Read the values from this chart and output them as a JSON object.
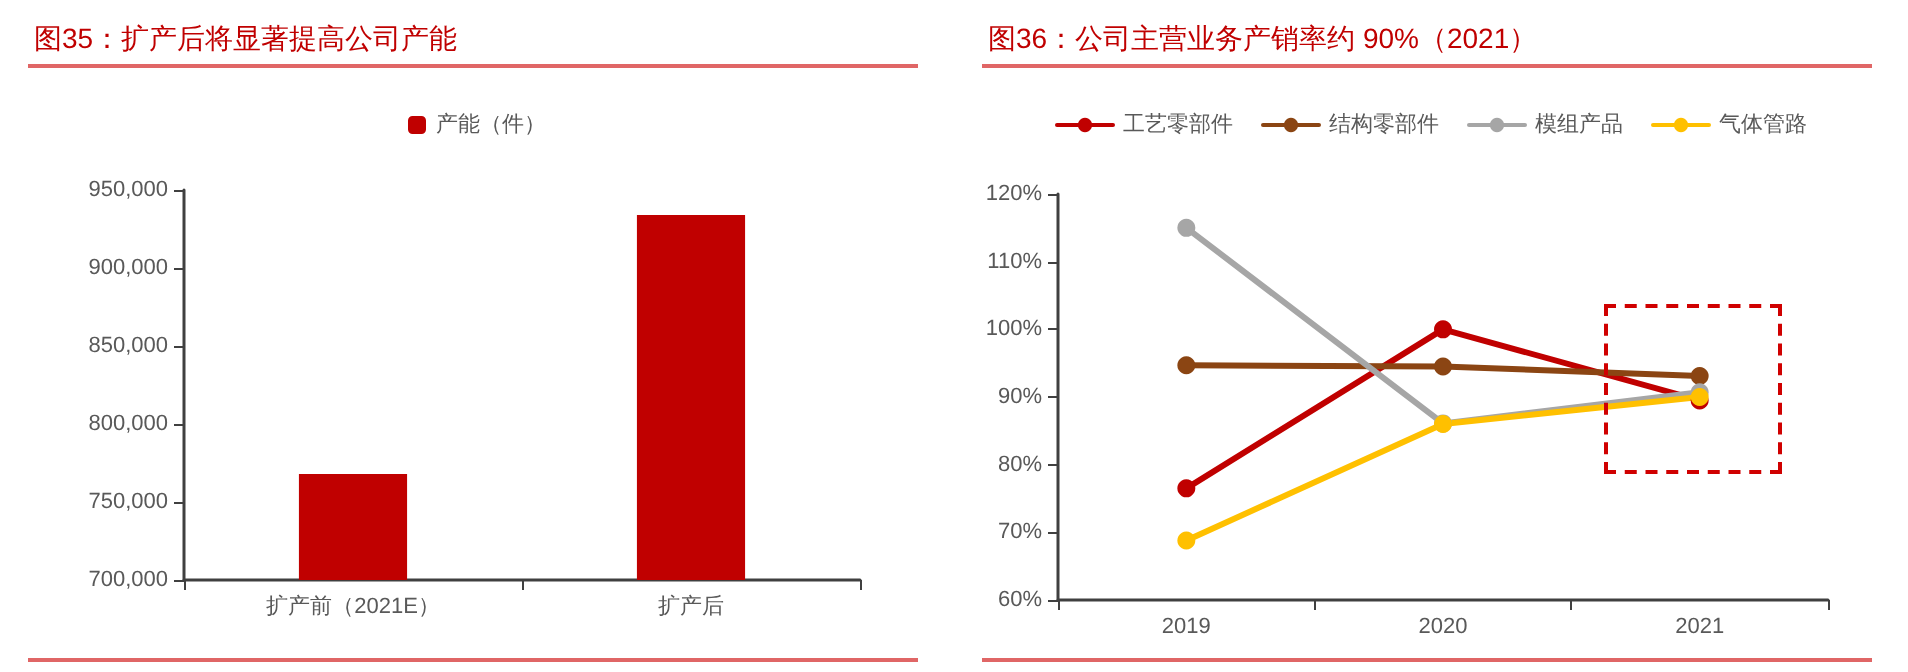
{
  "chart_data": [
    {
      "type": "bar",
      "title": "图35：扩产后将显著提高公司产能",
      "categories": [
        "扩产前（2021E）",
        "扩产后"
      ],
      "series": [
        {
          "name": "产能（件）",
          "color": "#c00000",
          "values": [
            768000,
            934000
          ]
        }
      ],
      "ylim": [
        700000,
        950000
      ],
      "yticks": [
        {
          "value": 700000,
          "label": "700,000"
        },
        {
          "value": 750000,
          "label": "750,000"
        },
        {
          "value": 800000,
          "label": "800,000"
        },
        {
          "value": 850000,
          "label": "850,000"
        },
        {
          "value": 900000,
          "label": "900,000"
        },
        {
          "value": 950000,
          "label": "950,000"
        }
      ],
      "legend": "top",
      "grid": false
    },
    {
      "type": "line",
      "title": "图36：公司主营业务产销率约 90%（2021）",
      "categories": [
        "2019",
        "2020",
        "2021"
      ],
      "series": [
        {
          "name": "工艺零部件",
          "color": "#c00000",
          "values": [
            76.5,
            100,
            89.5
          ]
        },
        {
          "name": "结构零部件",
          "color": "#8b4513",
          "values": [
            94.7,
            94.5,
            93.1
          ]
        },
        {
          "name": "模组产品",
          "color": "#a6a6a6",
          "values": [
            115,
            86.1,
            90.7
          ]
        },
        {
          "name": "气体管路",
          "color": "#ffc000",
          "values": [
            68.8,
            86,
            90
          ]
        }
      ],
      "ylim": [
        60,
        120
      ],
      "yticks": [
        {
          "value": 60,
          "label": "60%"
        },
        {
          "value": 70,
          "label": "70%"
        },
        {
          "value": 80,
          "label": "80%"
        },
        {
          "value": 90,
          "label": "90%"
        },
        {
          "value": 100,
          "label": "100%"
        },
        {
          "value": 110,
          "label": "110%"
        },
        {
          "value": 120,
          "label": "120%"
        }
      ],
      "legend": "top",
      "grid": false,
      "marker": "circle",
      "line_style": "solid"
    }
  ]
}
